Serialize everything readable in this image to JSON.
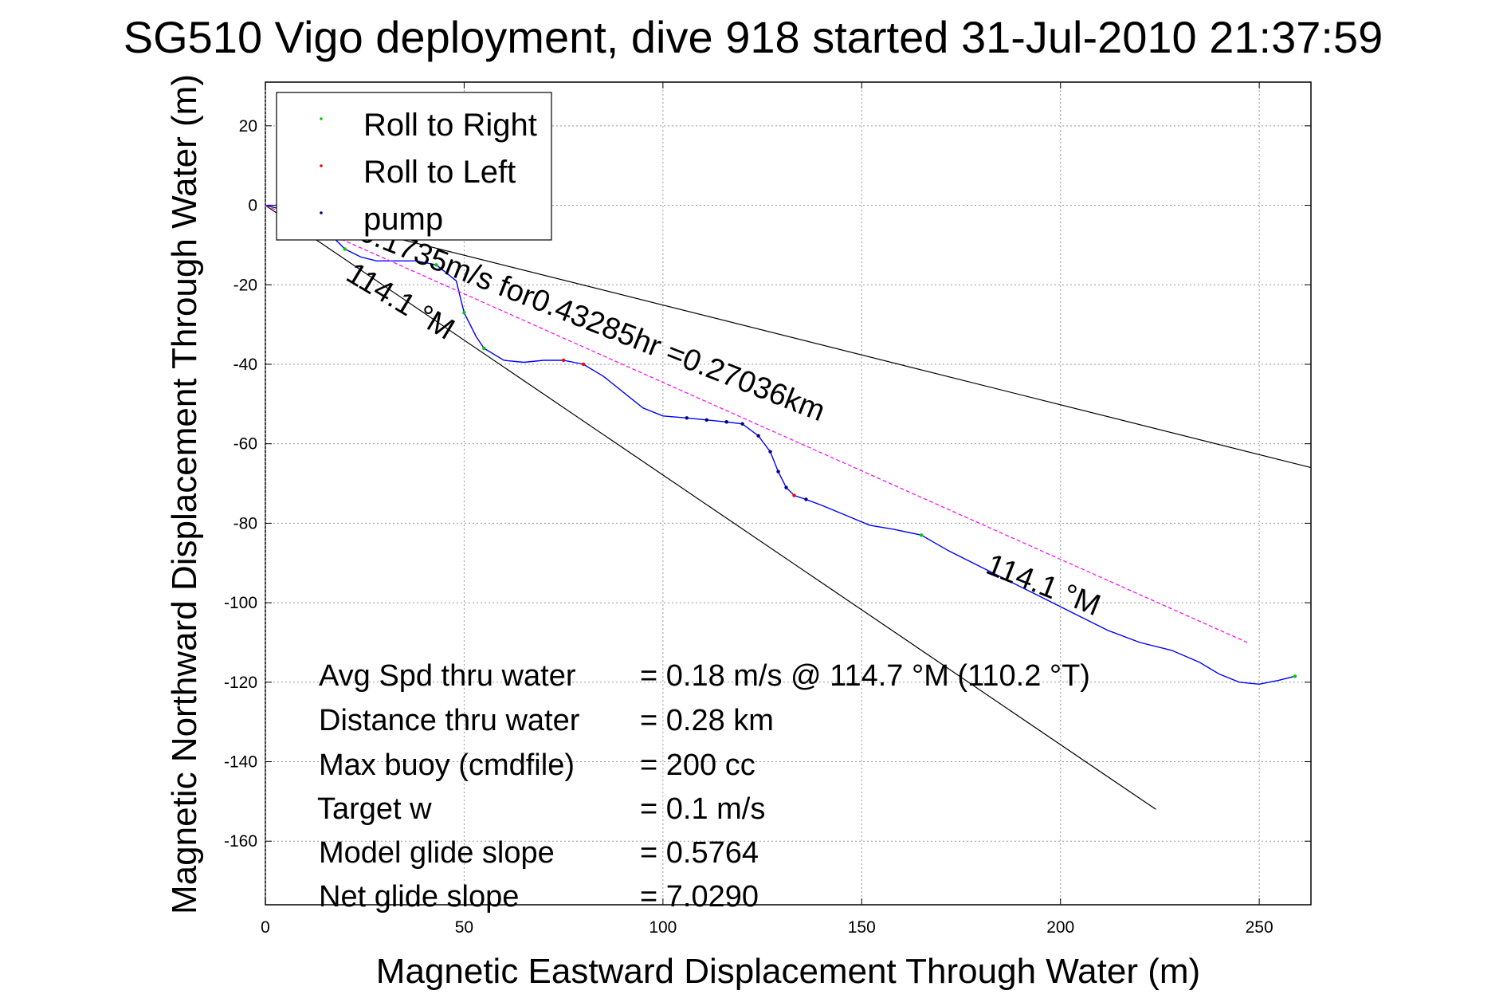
{
  "chart_data": {
    "type": "line",
    "title": "SG510 Vigo deployment, dive 918 started 31-Jul-2010 21:37:59",
    "xlabel": "Magnetic Eastward Displacement Through Water (m)",
    "ylabel": "Magnetic Northward Displacement Through Water (m)",
    "xlim": [
      0,
      263
    ],
    "ylim": [
      -176,
      31
    ],
    "xticks": [
      0,
      50,
      100,
      150,
      200,
      250
    ],
    "yticks": [
      20,
      0,
      -20,
      -40,
      -60,
      -80,
      -100,
      -120,
      -140,
      -160
    ],
    "grid": true,
    "legend_position": "top-left",
    "legend": [
      {
        "label": "Roll to Right",
        "color": "#00cc00"
      },
      {
        "label": "Roll to Left",
        "color": "#ff0000"
      },
      {
        "label": "pump",
        "color": "#000080"
      }
    ],
    "series": [
      {
        "style": "track",
        "color": "#0000ff",
        "x": [
          0,
          3,
          8,
          13,
          17,
          20,
          24,
          28,
          33,
          38,
          43,
          48,
          50,
          53,
          55,
          60,
          65,
          70,
          75,
          80,
          85,
          90,
          95,
          100,
          106,
          111,
          116,
          120,
          124,
          127,
          129,
          131,
          133,
          136,
          140,
          146,
          152,
          158,
          165,
          172,
          180,
          188,
          196,
          204,
          212,
          220,
          228,
          235,
          240,
          245,
          250,
          255,
          259
        ],
        "y": [
          0,
          0,
          -3,
          -5,
          -8,
          -11,
          -13,
          -14,
          -14,
          -14,
          -15,
          -19,
          -27,
          -33,
          -36,
          -39,
          -39.5,
          -39,
          -39,
          -40,
          -43,
          -47,
          -51,
          -53,
          -53.5,
          -54,
          -54.5,
          -55,
          -58,
          -62,
          -67,
          -71,
          -73,
          -74,
          -75.5,
          -78,
          -80.5,
          -81.5,
          -83,
          -87,
          -91,
          -95,
          -99,
          -103,
          -107,
          -110,
          -112,
          -115,
          -118,
          -120,
          -120.5,
          -119.5,
          -118.5
        ]
      },
      {
        "style": "thin-line",
        "color": "#000000",
        "x": [
          0,
          263
        ],
        "y": [
          0,
          -66
        ]
      },
      {
        "style": "thin-line",
        "color": "#000000",
        "x": [
          0,
          224
        ],
        "y": [
          0,
          -152
        ]
      },
      {
        "style": "dashed",
        "color": "#ff00ff",
        "x": [
          0,
          247
        ],
        "y": [
          0,
          -110
        ]
      }
    ],
    "markers": {
      "roll_right": {
        "x": [
          3,
          20,
          43,
          50,
          55,
          165,
          259
        ],
        "y": [
          0,
          -11,
          -15,
          -27,
          -36,
          -83,
          -118.5
        ]
      },
      "roll_left": {
        "x": [
          75,
          80,
          133
        ],
        "y": [
          -39,
          -40,
          -73
        ]
      },
      "pump": {
        "x": [
          106,
          111,
          116,
          120,
          124,
          127,
          129,
          131,
          136
        ],
        "y": [
          -53.5,
          -54,
          -54.5,
          -55,
          -58,
          -62,
          -67,
          -71,
          -74
        ]
      }
    },
    "annotations": [
      {
        "text": "0.1735m/s for0.43285hr =0.27036km"
      },
      {
        "text": "114.1 °M"
      },
      {
        "text": "114.1 °M"
      }
    ],
    "stats": [
      {
        "label": "Avg Spd thru water",
        "value": "=  0.18 m/s @ 114.7  °M (110.2 °T)"
      },
      {
        "label": "Distance thru water",
        "value": "=  0.28 km"
      },
      {
        "label": "Max buoy (cmdfile)",
        "value": "= 200 cc"
      },
      {
        "label": "Target w",
        "value": "= 0.1 m/s"
      },
      {
        "label": "Model glide slope",
        "value": "= 0.5764"
      },
      {
        "label": "Net glide slope",
        "value": "= 7.0290"
      }
    ]
  }
}
